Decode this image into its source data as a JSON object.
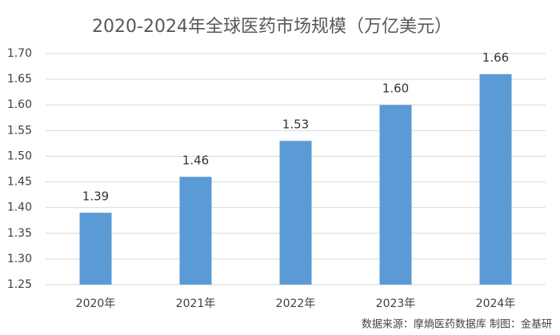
{
  "chart_data": {
    "type": "bar",
    "title": "2020-2024年全球医药市场规模（万亿美元）",
    "categories": [
      "2020年",
      "2021年",
      "2022年",
      "2023年",
      "2024年"
    ],
    "values": [
      1.39,
      1.46,
      1.53,
      1.6,
      1.66
    ],
    "value_labels": [
      "1.39",
      "1.46",
      "1.53",
      "1.60",
      "1.66"
    ],
    "color": "#5b9bd5",
    "ylim": [
      1.25,
      1.7
    ],
    "yticks": [
      1.25,
      {
        "value": 1.3,
        "label": "1.30"
      },
      1.35,
      {
        "value": 1.4,
        "label": "1.40"
      },
      1.45,
      {
        "value": 1.5,
        "label": "1.50"
      },
      1.55,
      {
        "value": 1.6,
        "label": "1.60"
      },
      1.65,
      {
        "value": 1.7,
        "label": "1.70"
      }
    ],
    "grid": true,
    "source": "数据来源：摩熵医药数据库  制图：金基研"
  }
}
